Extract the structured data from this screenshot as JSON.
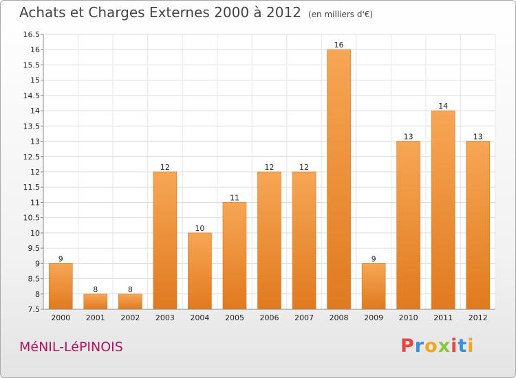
{
  "header": {
    "title": "Achats et Charges Externes 2000 à 2012",
    "subtitle": "(en milliers d'€)"
  },
  "footer": {
    "commune": "MéNIL-LéPINOIS",
    "logo_text": "Proxiti",
    "logo_colors": [
      "#e8463c",
      "#3a8fd8",
      "#f2a51d",
      "#8cc63f",
      "#e8463c",
      "#3a8fd8",
      "#f2a51d"
    ]
  },
  "chart_data": {
    "type": "bar",
    "categories": [
      "2000",
      "2001",
      "2002",
      "2003",
      "2004",
      "2005",
      "2006",
      "2007",
      "2008",
      "2009",
      "2010",
      "2011",
      "2012"
    ],
    "values": [
      9,
      8,
      8,
      12,
      10,
      11,
      12,
      12,
      16,
      9,
      13,
      14,
      13
    ],
    "ylim": [
      7.5,
      16.5
    ],
    "yticks": [
      7.5,
      8,
      8.5,
      9,
      9.5,
      10,
      10.5,
      11,
      11.5,
      12,
      12.5,
      13,
      13.5,
      14,
      14.5,
      15,
      15.5,
      16,
      16.5
    ],
    "grid": true,
    "bar_color": "#f0913a"
  }
}
